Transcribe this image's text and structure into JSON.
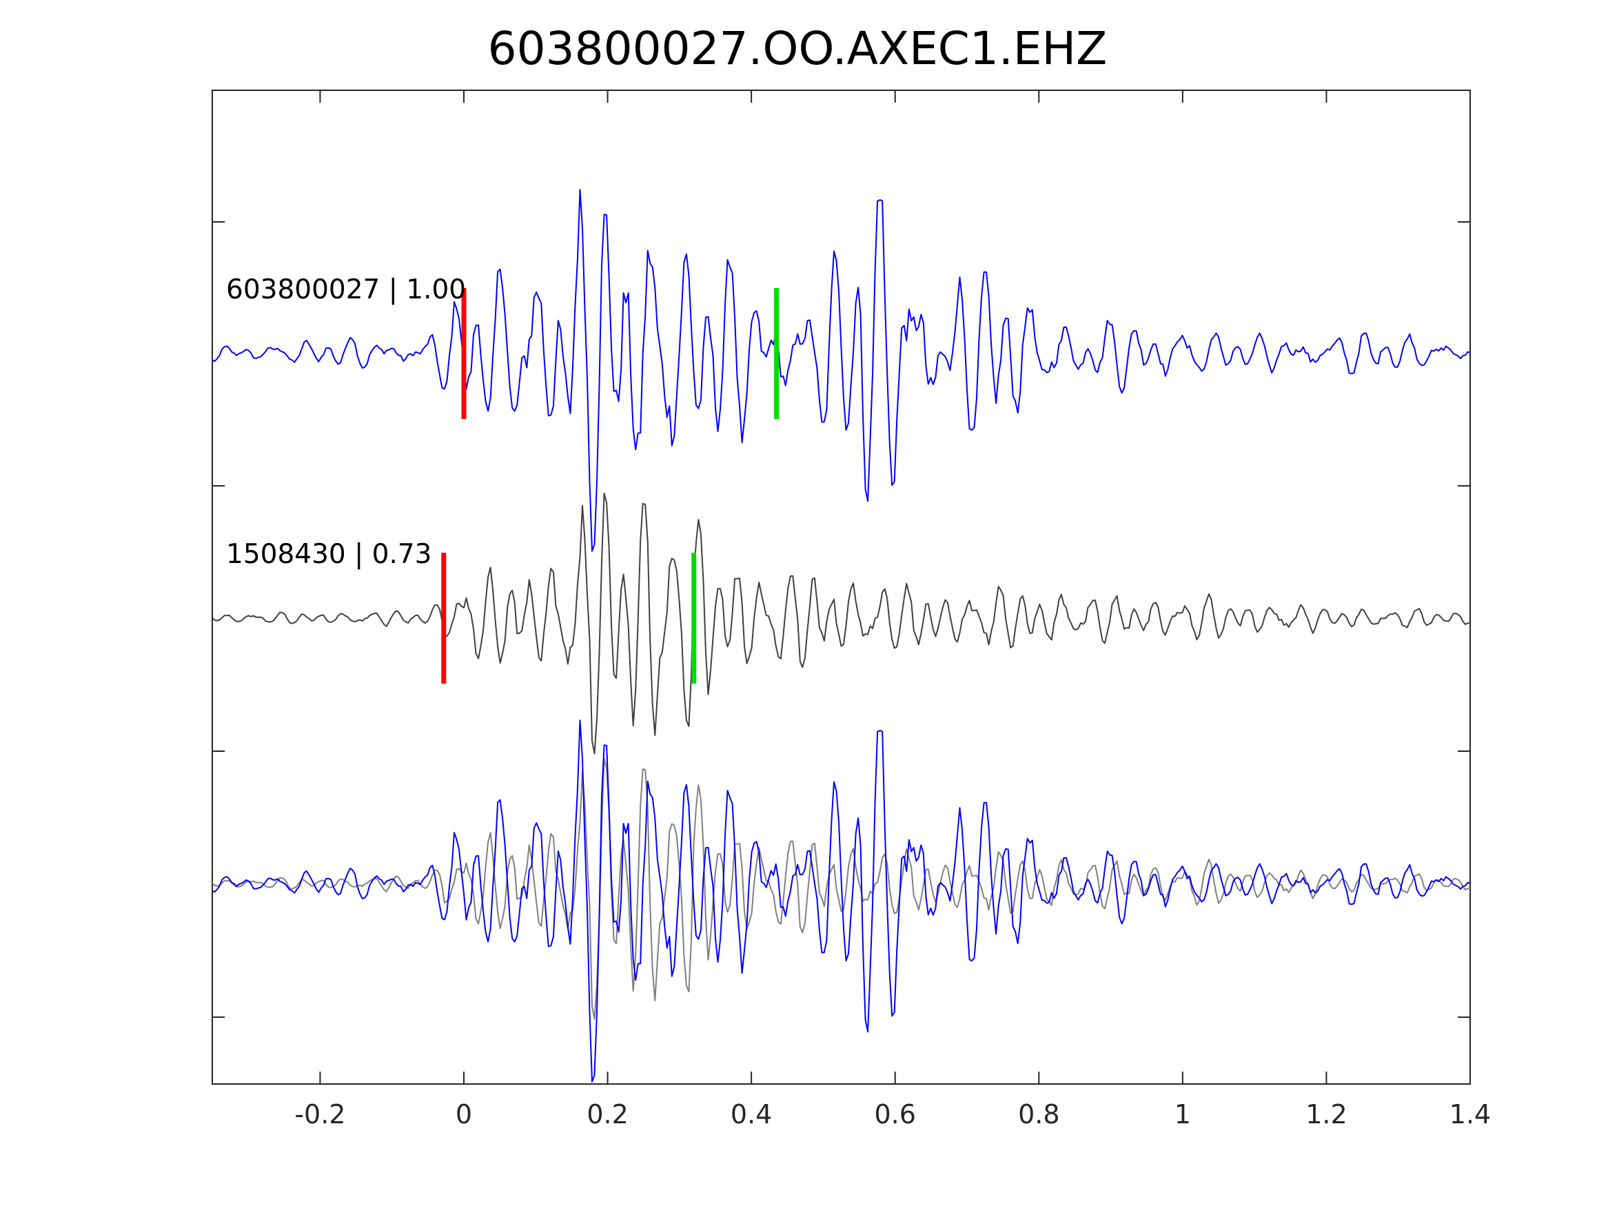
{
  "chart_data": {
    "type": "line",
    "title": "603800027.OO.AXEC1.EHZ",
    "xlabel": "",
    "ylabel": "",
    "xlim": [
      -0.35,
      1.4
    ],
    "xticks": [
      -0.2,
      0,
      0.2,
      0.4,
      0.6,
      0.8,
      1,
      1.2,
      1.4
    ],
    "xtick_labels": [
      "-0.2",
      "0",
      "0.2",
      "0.4",
      "0.6",
      "0.8",
      "1",
      "1.2",
      "1.4"
    ],
    "y_tick_labels_shown": false,
    "grid": false,
    "colors": {
      "master": "#0000ff",
      "detection": "#404040",
      "overlay_detection": "#808080",
      "p_pick": "#ff0000",
      "s_pick": "#00dd00",
      "axes": "#262626"
    },
    "traces": [
      {
        "label": "603800027 | 1.00",
        "id": "603800027",
        "cc": "1.00",
        "p_pick_time": 0.0,
        "s_pick_time": 0.435,
        "waveform_envelope": [
          [
            -0.35,
            0.05
          ],
          [
            -0.05,
            0.12
          ],
          [
            0.0,
            0.4
          ],
          [
            0.05,
            0.6
          ],
          [
            0.1,
            0.85
          ],
          [
            0.18,
            1.0
          ],
          [
            0.26,
            1.0
          ],
          [
            0.32,
            0.75
          ],
          [
            0.4,
            0.45
          ],
          [
            0.47,
            0.35
          ],
          [
            0.5,
            0.55
          ],
          [
            0.56,
            1.1
          ],
          [
            0.62,
            0.85
          ],
          [
            0.7,
            0.5
          ],
          [
            0.75,
            0.55
          ],
          [
            0.8,
            0.3
          ],
          [
            0.9,
            0.2
          ],
          [
            1.0,
            0.2
          ],
          [
            1.1,
            0.1
          ],
          [
            1.2,
            0.15
          ],
          [
            1.4,
            0.08
          ]
        ]
      },
      {
        "label": "1508430 | 0.73",
        "id": "1508430",
        "cc": "0.73",
        "p_pick_time": -0.028,
        "s_pick_time": 0.32,
        "waveform_envelope": [
          [
            -0.35,
            0.03
          ],
          [
            -0.05,
            0.05
          ],
          [
            -0.02,
            0.25
          ],
          [
            0.05,
            0.3
          ],
          [
            0.1,
            0.4
          ],
          [
            0.15,
            0.6
          ],
          [
            0.19,
            0.9
          ],
          [
            0.22,
            0.85
          ],
          [
            0.26,
            1.1
          ],
          [
            0.3,
            0.8
          ],
          [
            0.35,
            0.5
          ],
          [
            0.4,
            0.4
          ],
          [
            0.5,
            0.3
          ],
          [
            0.6,
            0.22
          ],
          [
            0.7,
            0.2
          ],
          [
            0.8,
            0.2
          ],
          [
            0.9,
            0.15
          ],
          [
            1.0,
            0.15
          ],
          [
            1.1,
            0.12
          ],
          [
            1.2,
            0.08
          ],
          [
            1.4,
            0.05
          ]
        ]
      }
    ]
  }
}
